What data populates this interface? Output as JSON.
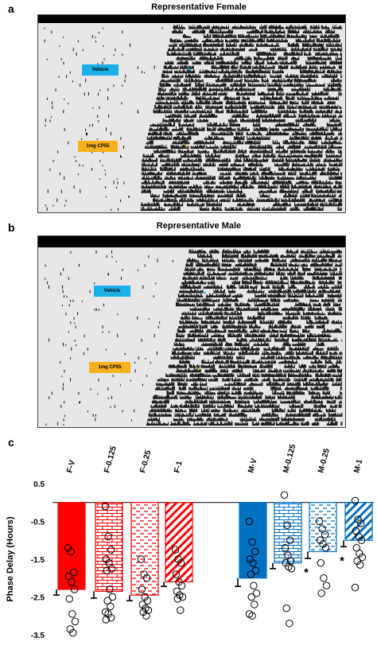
{
  "panels": {
    "a": {
      "letter": "a",
      "title": "Representative Female",
      "vehicle_label": "Vehicle",
      "drug_label": "1mg CP55",
      "vehicle_color": "#1ab0e8",
      "drug_color": "#f7b11a"
    },
    "b": {
      "letter": "b",
      "title": "Representative Male",
      "vehicle_label": "Vehicle",
      "drug_label": "1mg CP55",
      "vehicle_color": "#1ab0e8",
      "drug_color": "#f7b11a"
    },
    "c": {
      "letter": "c"
    }
  },
  "chart_data": {
    "type": "bar",
    "ylabel": "Phase Delay (Hours)",
    "ylim": [
      -3.5,
      0.5
    ],
    "yticks": [
      "0.5",
      "-0.5",
      "-1.5",
      "-2.5",
      "-3.5"
    ],
    "categories": [
      "F-V",
      "F-0.125",
      "F-0.25",
      "F-1",
      "M-V",
      "M-0.125",
      "M-0.25",
      "M-1"
    ],
    "values": [
      -2.3,
      -2.35,
      -2.45,
      -2.1,
      -2.0,
      -1.6,
      -1.3,
      -1.0
    ],
    "errors": [
      0.15,
      0.18,
      0.15,
      0.12,
      0.22,
      0.15,
      0.18,
      0.17
    ],
    "fills": [
      "solid",
      "brick",
      "dash",
      "diagonal",
      "solid",
      "brick",
      "dash",
      "diagonal"
    ],
    "colors": [
      "#ff0000",
      "#ff0000",
      "#ff0000",
      "#ff0000",
      "#0070c0",
      "#0070c0",
      "#0070c0",
      "#0070c0"
    ],
    "significance": [
      "",
      "",
      "",
      "",
      "",
      "",
      "*",
      "*"
    ],
    "points": [
      [
        -1.2,
        -1.3,
        -1.85,
        -1.95,
        -2.1,
        -2.3,
        -2.55,
        -2.95,
        -3.15,
        -3.35,
        -3.45
      ],
      [
        -0.1,
        -0.9,
        -1.25,
        -1.5,
        -1.6,
        -1.75,
        -1.8,
        -2.3,
        -2.5,
        -2.6,
        -2.75,
        -2.9,
        -2.95,
        -3.05,
        -3.1
      ],
      [
        -1.5,
        -1.9,
        -2.0,
        -2.3,
        -2.5,
        -2.6,
        -2.7,
        -2.8,
        -2.85,
        -2.9,
        -3.0
      ],
      [
        -1.25,
        -1.5,
        -1.6,
        -1.9,
        -2.1,
        -2.2,
        -2.35,
        -2.45,
        -2.5,
        -2.55,
        -2.85
      ],
      [
        -0.5,
        -1.05,
        -1.3,
        -1.5,
        -1.6,
        -1.8,
        -1.9,
        -2.2,
        -2.4,
        -2.5,
        -2.7,
        -2.95,
        -3.0
      ],
      [
        0.2,
        -0.6,
        -1.0,
        -1.2,
        -1.4,
        -1.55,
        -1.6,
        -1.7,
        -1.75,
        -2.8,
        -3.2
      ],
      [
        -0.5,
        -0.7,
        -0.85,
        -1.0,
        -1.1,
        -1.2,
        -1.6,
        -2.0,
        -2.2,
        -2.4
      ],
      [
        0.05,
        -0.45,
        -0.55,
        -0.75,
        -0.9,
        -1.0,
        -1.2,
        -1.35,
        -1.45,
        -1.55,
        -1.65,
        -2.25
      ]
    ]
  }
}
